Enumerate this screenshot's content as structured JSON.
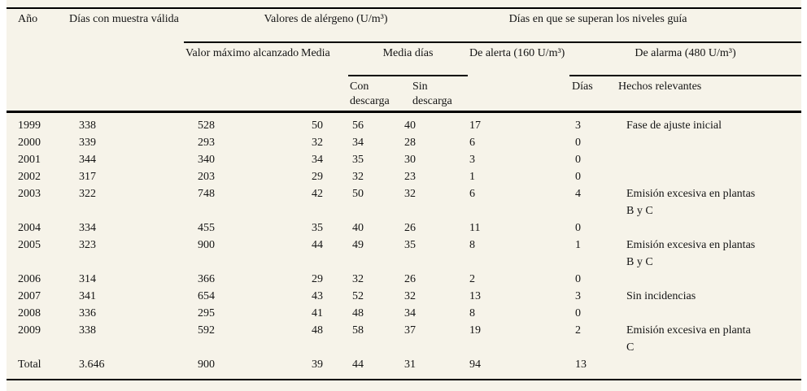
{
  "colors": {
    "page_background": "#ffffff",
    "table_background": "#f6f3e9",
    "rule": "#000000",
    "text": "#141414"
  },
  "table": {
    "headers": {
      "year": "Año",
      "valid_days": "Días con muestra válida",
      "allergen_group": "Valores de alérgeno (U/m³)",
      "guideline_group": "Días en que se superan los niveles guía",
      "max_value": "Valor máximo alcanzado",
      "mean": "Media",
      "mean_days_group": "Media días",
      "alert": "De alerta (160 U/m³)",
      "alarm_group": "De alarma (480 U/m³)",
      "with_discharge": "Con descarga",
      "without_discharge": "Sin descarga",
      "days": "Días",
      "relevant_events": "Hechos relevantes"
    },
    "rows": [
      [
        "1999",
        "338",
        "528",
        "50",
        "56",
        "40",
        "17",
        "3",
        "Fase de ajuste inicial"
      ],
      [
        "2000",
        "339",
        "293",
        "32",
        "34",
        "28",
        "6",
        "0",
        ""
      ],
      [
        "2001",
        "344",
        "340",
        "34",
        "35",
        "30",
        "3",
        "0",
        ""
      ],
      [
        "2002",
        "317",
        "203",
        "29",
        "32",
        "23",
        "1",
        "0",
        ""
      ],
      [
        "2003",
        "322",
        "748",
        "42",
        "50",
        "32",
        "6",
        "4",
        "Emisión excesiva en plantas\nB y C"
      ],
      [
        "2004",
        "334",
        "455",
        "35",
        "40",
        "26",
        "11",
        "0",
        ""
      ],
      [
        "2005",
        "323",
        "900",
        "44",
        "49",
        "35",
        "8",
        "1",
        "Emisión excesiva en plantas\nB y C"
      ],
      [
        "2006",
        "314",
        "366",
        "29",
        "32",
        "26",
        "2",
        "0",
        ""
      ],
      [
        "2007",
        "341",
        "654",
        "43",
        "52",
        "32",
        "13",
        "3",
        "Sin incidencias"
      ],
      [
        "2008",
        "336",
        "295",
        "41",
        "48",
        "34",
        "8",
        "0",
        ""
      ],
      [
        "2009",
        "338",
        "592",
        "48",
        "58",
        "37",
        "19",
        "2",
        "Emisión excesiva en planta\nC"
      ],
      [
        "Total",
        "3.646",
        "900",
        "39",
        "44",
        "31",
        "94",
        "13",
        ""
      ]
    ]
  }
}
